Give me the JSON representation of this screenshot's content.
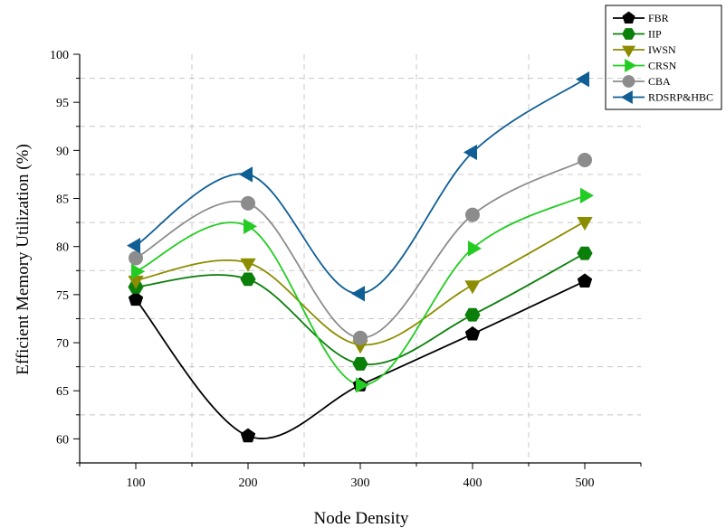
{
  "chart_data": {
    "type": "line",
    "title": "",
    "xlabel": "Node Density",
    "ylabel": "Efficient Memory Utilization (%)",
    "x": [
      100,
      200,
      300,
      400,
      500
    ],
    "xlim": [
      50,
      550
    ],
    "ylim": [
      57.5,
      100
    ],
    "x_ticks": [
      "100",
      "200",
      "300",
      "400",
      "500"
    ],
    "y_ticks": [
      "60",
      "65",
      "70",
      "75",
      "80",
      "85",
      "90",
      "95",
      "100"
    ],
    "grid": "dashed",
    "legend_position": "top-right (outside plot)",
    "series": [
      {
        "name": "FBR",
        "values": [
          74.5,
          60.3,
          65.6,
          70.9,
          76.4
        ],
        "color": "#000000",
        "marker": "pentagon"
      },
      {
        "name": "IIP",
        "values": [
          75.8,
          76.6,
          67.8,
          72.9,
          79.3
        ],
        "color": "#0a7f0a",
        "marker": "hexagon"
      },
      {
        "name": "IWSN",
        "values": [
          76.5,
          78.3,
          69.8,
          76.0,
          82.6
        ],
        "color": "#8c8c00",
        "marker": "triangle-down"
      },
      {
        "name": "CRSN",
        "values": [
          77.4,
          82.1,
          65.6,
          79.8,
          85.3
        ],
        "color": "#22cc22",
        "marker": "triangle-right"
      },
      {
        "name": "CBA",
        "values": [
          78.8,
          84.5,
          70.5,
          83.3,
          89.0
        ],
        "color": "#8c8c8c",
        "marker": "circle"
      },
      {
        "name": "RDSRP&HBC",
        "values": [
          80.1,
          87.5,
          75.1,
          89.8,
          97.4
        ],
        "color": "#0f5e94",
        "marker": "triangle-left"
      }
    ]
  }
}
